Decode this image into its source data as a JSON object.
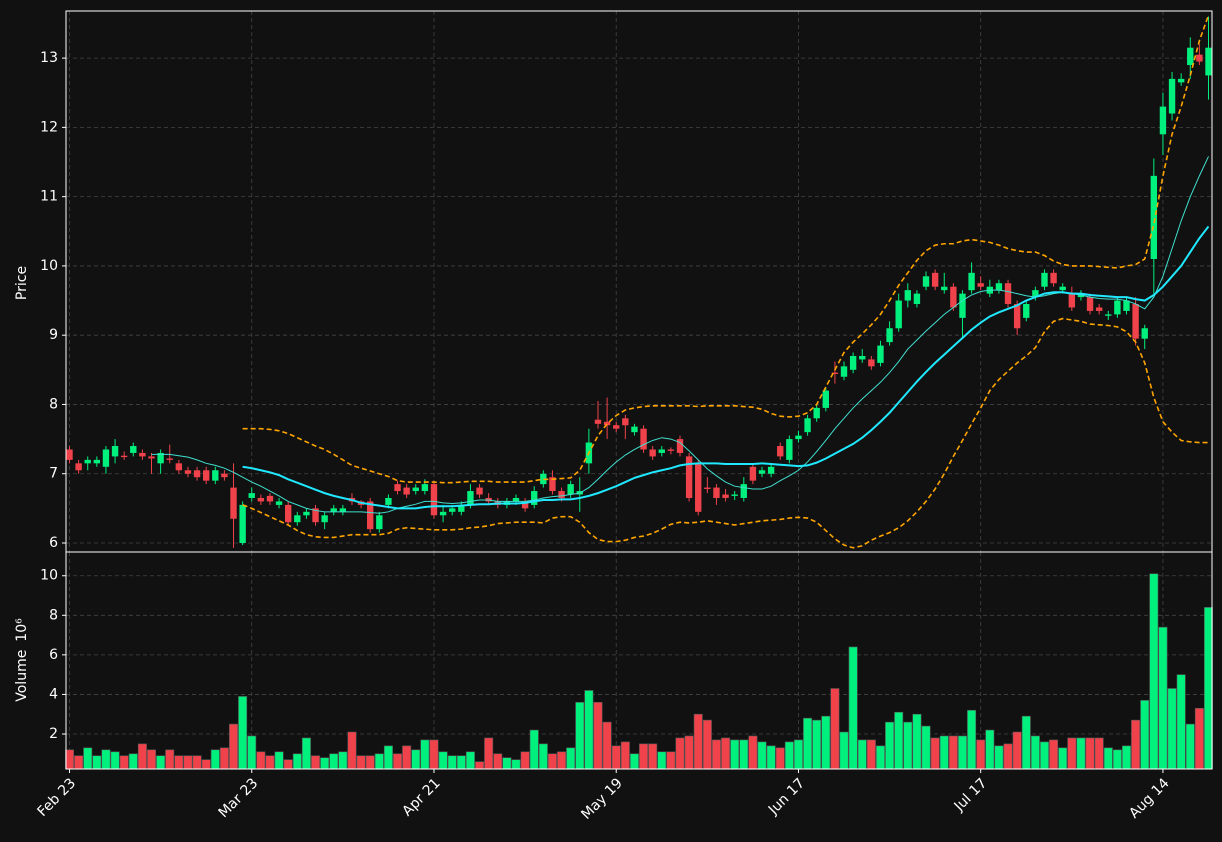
{
  "chart_data": {
    "type": "candlestick",
    "categories": [
      "Feb 23",
      null,
      null,
      null,
      null,
      null,
      null,
      null,
      null,
      null,
      null,
      null,
      null,
      null,
      null,
      null,
      null,
      null,
      null,
      null,
      "Mar 23",
      null,
      null,
      null,
      null,
      null,
      null,
      null,
      null,
      null,
      null,
      null,
      null,
      null,
      null,
      null,
      null,
      null,
      null,
      null,
      "Apr 21",
      null,
      null,
      null,
      null,
      null,
      null,
      null,
      null,
      null,
      null,
      null,
      null,
      null,
      null,
      null,
      null,
      null,
      null,
      null,
      "May 19",
      null,
      null,
      null,
      null,
      null,
      null,
      null,
      null,
      null,
      null,
      null,
      null,
      null,
      null,
      null,
      null,
      null,
      null,
      null,
      "Jun 17",
      null,
      null,
      null,
      null,
      null,
      null,
      null,
      null,
      null,
      null,
      null,
      null,
      null,
      null,
      null,
      null,
      null,
      null,
      null,
      "Jul 17",
      null,
      null,
      null,
      null,
      null,
      null,
      null,
      null,
      null,
      null,
      null,
      null,
      null,
      null,
      null,
      null,
      null,
      null,
      null,
      "Aug 14",
      null,
      null,
      null,
      null,
      null
    ],
    "open": [
      7.35,
      7.15,
      7.15,
      7.15,
      7.1,
      7.25,
      7.26,
      7.3,
      7.3,
      7.25,
      7.15,
      7.22,
      7.15,
      7.05,
      7.05,
      7.05,
      6.9,
      7.0,
      6.8,
      6.0,
      6.65,
      6.65,
      6.68,
      6.55,
      6.55,
      6.3,
      6.4,
      6.5,
      6.3,
      6.45,
      6.45,
      6.65,
      6.6,
      6.6,
      6.2,
      6.55,
      6.85,
      6.8,
      6.75,
      6.75,
      6.85,
      6.4,
      6.45,
      6.45,
      6.55,
      6.8,
      6.65,
      6.6,
      6.55,
      6.6,
      6.6,
      6.55,
      6.85,
      6.95,
      6.75,
      6.7,
      6.7,
      7.15,
      7.78,
      7.75,
      7.7,
      7.8,
      7.6,
      7.65,
      7.35,
      7.3,
      7.35,
      7.5,
      7.25,
      7.15,
      6.8,
      6.8,
      6.7,
      6.68,
      6.65,
      7.1,
      7.0,
      7.0,
      7.4,
      7.2,
      7.5,
      7.6,
      7.8,
      7.95,
      8.46,
      8.4,
      8.5,
      8.65,
      8.65,
      8.6,
      8.9,
      9.1,
      9.5,
      9.45,
      9.7,
      9.9,
      9.65,
      9.7,
      9.25,
      9.65,
      9.75,
      9.6,
      9.65,
      9.75,
      9.45,
      9.25,
      9.55,
      9.7,
      9.9,
      9.65,
      9.6,
      9.55,
      9.55,
      9.4,
      9.28,
      9.3,
      9.35,
      9.45,
      8.95,
      10.1,
      11.9,
      12.2,
      12.65,
      12.9,
      13.05,
      12.75
    ],
    "high": [
      7.4,
      7.2,
      7.25,
      7.25,
      7.4,
      7.5,
      7.32,
      7.45,
      7.35,
      7.3,
      7.35,
      7.42,
      7.2,
      7.1,
      7.1,
      7.1,
      7.1,
      7.05,
      7.15,
      6.6,
      6.8,
      6.7,
      6.72,
      6.65,
      6.6,
      6.45,
      6.5,
      6.55,
      6.45,
      6.55,
      6.55,
      6.72,
      6.62,
      6.65,
      6.45,
      6.7,
      6.9,
      6.85,
      6.85,
      6.92,
      6.9,
      6.55,
      6.55,
      6.6,
      6.85,
      6.85,
      6.72,
      6.65,
      6.65,
      6.7,
      6.65,
      6.82,
      7.05,
      7.05,
      6.8,
      6.9,
      6.95,
      7.65,
      8.05,
      8.1,
      7.75,
      7.85,
      7.72,
      7.7,
      7.4,
      7.4,
      7.38,
      7.55,
      7.3,
      7.2,
      6.95,
      6.85,
      6.78,
      6.75,
      6.95,
      7.15,
      7.1,
      7.15,
      7.45,
      7.55,
      7.62,
      7.85,
      8.0,
      8.25,
      8.62,
      8.62,
      8.75,
      8.8,
      8.7,
      8.92,
      9.2,
      9.6,
      9.75,
      9.65,
      9.92,
      9.95,
      9.9,
      9.75,
      9.65,
      10.05,
      9.85,
      9.8,
      9.8,
      9.8,
      9.5,
      9.5,
      9.7,
      9.95,
      9.95,
      9.75,
      9.7,
      9.65,
      9.6,
      9.45,
      9.35,
      9.55,
      9.55,
      9.55,
      9.15,
      11.55,
      12.5,
      12.8,
      12.78,
      13.3,
      13.2,
      13.6
    ],
    "low": [
      7.15,
      7.0,
      7.05,
      7.1,
      7.0,
      7.15,
      7.2,
      7.25,
      7.2,
      7.0,
      7.0,
      7.15,
      7.0,
      6.95,
      6.9,
      6.85,
      6.85,
      6.9,
      5.93,
      5.97,
      6.6,
      6.55,
      6.55,
      6.5,
      6.25,
      6.25,
      6.35,
      6.25,
      6.2,
      6.4,
      6.4,
      6.55,
      6.5,
      6.15,
      6.15,
      6.5,
      6.7,
      6.65,
      6.7,
      6.7,
      6.35,
      6.3,
      6.4,
      6.4,
      6.5,
      6.65,
      6.55,
      6.5,
      6.5,
      6.55,
      6.45,
      6.5,
      6.8,
      6.7,
      6.6,
      6.65,
      6.45,
      7.0,
      7.65,
      7.5,
      7.6,
      7.5,
      7.55,
      7.3,
      7.2,
      7.25,
      7.28,
      7.25,
      6.6,
      6.4,
      6.72,
      6.55,
      6.6,
      6.62,
      6.6,
      6.85,
      6.95,
      6.95,
      7.2,
      7.15,
      7.45,
      7.55,
      7.75,
      7.9,
      8.3,
      8.35,
      8.45,
      8.6,
      8.5,
      8.55,
      8.85,
      9.05,
      9.4,
      9.4,
      9.65,
      9.65,
      9.6,
      9.35,
      8.95,
      9.6,
      9.65,
      9.55,
      9.6,
      9.4,
      9.0,
      9.2,
      9.5,
      9.65,
      9.7,
      9.6,
      9.35,
      9.5,
      9.3,
      9.3,
      9.22,
      9.25,
      9.3,
      8.85,
      8.8,
      9.6,
      11.6,
      12.1,
      12.6,
      12.7,
      12.9,
      12.4
    ],
    "close": [
      7.2,
      7.05,
      7.2,
      7.2,
      7.35,
      7.4,
      7.24,
      7.4,
      7.25,
      7.22,
      7.3,
      7.2,
      7.05,
      7.0,
      6.95,
      6.9,
      7.05,
      6.95,
      6.35,
      6.55,
      6.72,
      6.6,
      6.6,
      6.6,
      6.3,
      6.4,
      6.45,
      6.3,
      6.4,
      6.5,
      6.5,
      6.6,
      6.55,
      6.2,
      6.4,
      6.65,
      6.75,
      6.7,
      6.8,
      6.85,
      6.4,
      6.45,
      6.5,
      6.55,
      6.75,
      6.7,
      6.6,
      6.55,
      6.6,
      6.65,
      6.5,
      6.75,
      7.0,
      6.75,
      6.65,
      6.85,
      6.75,
      7.45,
      7.72,
      7.7,
      7.65,
      7.7,
      7.68,
      7.35,
      7.25,
      7.35,
      7.33,
      7.3,
      6.65,
      6.45,
      6.78,
      6.65,
      6.65,
      6.7,
      6.85,
      6.9,
      7.05,
      7.1,
      7.25,
      7.5,
      7.55,
      7.8,
      7.95,
      8.2,
      8.44,
      8.55,
      8.7,
      8.7,
      8.55,
      8.85,
      9.1,
      9.5,
      9.65,
      9.6,
      9.85,
      9.7,
      9.7,
      9.4,
      9.6,
      9.9,
      9.7,
      9.7,
      9.75,
      9.45,
      9.1,
      9.45,
      9.65,
      9.9,
      9.75,
      9.7,
      9.4,
      9.6,
      9.35,
      9.35,
      9.3,
      9.5,
      9.5,
      8.95,
      9.1,
      11.3,
      12.3,
      12.7,
      12.7,
      13.15,
      12.95,
      13.15
    ],
    "volume": [
      1.2,
      0.9,
      1.3,
      0.9,
      1.2,
      1.1,
      0.9,
      1.0,
      1.5,
      1.2,
      0.9,
      1.2,
      0.9,
      0.9,
      0.9,
      0.7,
      1.2,
      1.3,
      2.5,
      3.9,
      1.9,
      1.1,
      0.9,
      1.1,
      0.7,
      1.0,
      1.8,
      0.9,
      0.8,
      1.0,
      1.1,
      2.1,
      0.9,
      0.9,
      1.0,
      1.4,
      1.0,
      1.4,
      1.2,
      1.7,
      1.7,
      1.1,
      0.9,
      0.9,
      1.1,
      0.6,
      1.8,
      1.0,
      0.8,
      0.7,
      1.1,
      2.2,
      1.5,
      1.0,
      1.1,
      1.3,
      3.6,
      4.2,
      3.6,
      2.6,
      1.4,
      1.6,
      1.0,
      1.5,
      1.5,
      1.1,
      1.1,
      1.8,
      1.9,
      3.0,
      2.7,
      1.7,
      1.8,
      1.7,
      1.7,
      1.9,
      1.6,
      1.4,
      1.3,
      1.6,
      1.7,
      2.8,
      2.7,
      2.9,
      4.3,
      2.1,
      6.4,
      1.7,
      1.7,
      1.4,
      2.6,
      3.1,
      2.6,
      3.0,
      2.4,
      1.8,
      1.9,
      1.9,
      1.9,
      3.2,
      1.7,
      2.2,
      1.4,
      1.5,
      2.1,
      2.9,
      1.9,
      1.6,
      1.7,
      1.3,
      1.8,
      1.8,
      1.8,
      1.8,
      1.3,
      1.2,
      1.4,
      2.7,
      3.7,
      10.1,
      7.4,
      4.3,
      5.0,
      2.5,
      3.3,
      8.4
    ],
    "up_color": "#00f07e",
    "down_color": "#f0424b",
    "grid": true,
    "price_axis": {
      "label": "Price",
      "ylim": [
        5.87,
        13.68
      ],
      "yticks": [
        6,
        7,
        8,
        9,
        10,
        11,
        12,
        13
      ]
    },
    "volume_axis": {
      "label": "Volume",
      "offset_label": "10⁶",
      "ylim": [
        0.23,
        11.2
      ],
      "yticks": [
        2,
        4,
        6,
        8,
        10
      ]
    },
    "overlays": [
      {
        "style": "thin",
        "color": "#40e0d0",
        "values": [
          null,
          null,
          null,
          null,
          null,
          null,
          null,
          null,
          null,
          7.28,
          7.28,
          7.28,
          7.26,
          7.24,
          7.2,
          7.15,
          7.12,
          7.08,
          7.02,
          6.95,
          6.88,
          6.82,
          6.75,
          6.68,
          6.6,
          6.55,
          6.5,
          6.47,
          6.45,
          6.45,
          6.45,
          6.45,
          6.45,
          6.44,
          6.43,
          6.45,
          6.5,
          6.53,
          6.56,
          6.6,
          6.6,
          6.58,
          6.57,
          6.58,
          6.6,
          6.62,
          6.62,
          6.6,
          6.6,
          6.6,
          6.6,
          6.62,
          6.65,
          6.67,
          6.68,
          6.7,
          6.72,
          6.8,
          6.92,
          7.05,
          7.17,
          7.27,
          7.35,
          7.42,
          7.48,
          7.52,
          7.5,
          7.45,
          7.33,
          7.2,
          7.07,
          6.97,
          6.88,
          6.82,
          6.8,
          6.78,
          6.78,
          6.82,
          6.9,
          6.97,
          7.05,
          7.17,
          7.32,
          7.48,
          7.65,
          7.8,
          7.95,
          8.08,
          8.2,
          8.32,
          8.46,
          8.62,
          8.8,
          8.93,
          9.06,
          9.18,
          9.3,
          9.4,
          9.5,
          9.58,
          9.63,
          9.65,
          9.65,
          9.63,
          9.6,
          9.57,
          9.55,
          9.57,
          9.6,
          9.62,
          9.6,
          9.58,
          9.55,
          9.53,
          9.52,
          9.52,
          9.5,
          9.45,
          9.38,
          9.55,
          9.85,
          10.25,
          10.65,
          11.0,
          11.3,
          11.58
        ]
      },
      {
        "style": "thick",
        "color": "#20e8ff",
        "values": [
          null,
          null,
          null,
          null,
          null,
          null,
          null,
          null,
          null,
          null,
          null,
          null,
          null,
          null,
          null,
          null,
          null,
          null,
          null,
          7.1,
          7.08,
          7.05,
          7.02,
          6.98,
          6.92,
          6.87,
          6.82,
          6.77,
          6.72,
          6.68,
          6.65,
          6.62,
          6.58,
          6.56,
          6.54,
          6.52,
          6.5,
          6.5,
          6.5,
          6.52,
          6.53,
          6.53,
          6.53,
          6.54,
          6.55,
          6.56,
          6.56,
          6.57,
          6.57,
          6.57,
          6.58,
          6.6,
          6.62,
          6.62,
          6.63,
          6.63,
          6.65,
          6.68,
          6.72,
          6.77,
          6.82,
          6.88,
          6.94,
          6.98,
          7.02,
          7.05,
          7.08,
          7.12,
          7.14,
          7.15,
          7.15,
          7.15,
          7.14,
          7.14,
          7.14,
          7.14,
          7.15,
          7.14,
          7.13,
          7.12,
          7.11,
          7.12,
          7.16,
          7.22,
          7.29,
          7.36,
          7.43,
          7.52,
          7.63,
          7.75,
          7.88,
          8.03,
          8.18,
          8.33,
          8.47,
          8.6,
          8.72,
          8.84,
          8.96,
          9.08,
          9.18,
          9.27,
          9.33,
          9.38,
          9.43,
          9.5,
          9.55,
          9.6,
          9.62,
          9.62,
          9.6,
          9.6,
          9.58,
          9.57,
          9.56,
          9.55,
          9.55,
          9.52,
          9.5,
          9.58,
          9.7,
          9.85,
          10.0,
          10.2,
          10.4,
          10.57
        ]
      },
      {
        "style": "dashed",
        "color": "#ffa500",
        "values": [
          null,
          null,
          null,
          null,
          null,
          null,
          null,
          null,
          null,
          null,
          null,
          null,
          null,
          null,
          null,
          null,
          null,
          null,
          null,
          7.65,
          7.65,
          7.65,
          7.64,
          7.62,
          7.58,
          7.52,
          7.46,
          7.4,
          7.35,
          7.28,
          7.2,
          7.12,
          7.08,
          7.04,
          7.0,
          6.96,
          6.9,
          6.88,
          6.88,
          6.88,
          6.88,
          6.87,
          6.87,
          6.88,
          6.89,
          6.89,
          6.89,
          6.88,
          6.88,
          6.88,
          6.88,
          6.9,
          6.92,
          6.92,
          6.93,
          6.94,
          7.05,
          7.3,
          7.55,
          7.72,
          7.84,
          7.92,
          7.95,
          7.97,
          7.98,
          7.98,
          7.98,
          7.98,
          7.98,
          7.97,
          7.98,
          7.98,
          7.98,
          7.98,
          7.97,
          7.96,
          7.93,
          7.87,
          7.83,
          7.82,
          7.83,
          7.88,
          8.0,
          8.25,
          8.5,
          8.75,
          8.9,
          9.02,
          9.15,
          9.3,
          9.5,
          9.72,
          9.9,
          10.08,
          10.22,
          10.3,
          10.32,
          10.32,
          10.36,
          10.38,
          10.36,
          10.34,
          10.3,
          10.25,
          10.22,
          10.2,
          10.2,
          10.15,
          10.07,
          10.02,
          10.0,
          10.0,
          10.0,
          9.99,
          9.98,
          9.97,
          10.0,
          10.02,
          10.1,
          10.6,
          11.3,
          11.9,
          12.3,
          12.75,
          13.25,
          13.62
        ]
      },
      {
        "style": "dashed",
        "color": "#ffa500",
        "values": [
          null,
          null,
          null,
          null,
          null,
          null,
          null,
          null,
          null,
          null,
          null,
          null,
          null,
          null,
          null,
          null,
          null,
          null,
          null,
          6.55,
          6.5,
          6.44,
          6.38,
          6.32,
          6.26,
          6.18,
          6.12,
          6.09,
          6.08,
          6.08,
          6.1,
          6.12,
          6.12,
          6.12,
          6.12,
          6.14,
          6.2,
          6.22,
          6.21,
          6.2,
          6.19,
          6.19,
          6.19,
          6.2,
          6.22,
          6.23,
          6.25,
          6.28,
          6.29,
          6.3,
          6.3,
          6.3,
          6.29,
          6.36,
          6.38,
          6.38,
          6.3,
          6.15,
          6.05,
          6.02,
          6.02,
          6.04,
          6.08,
          6.1,
          6.14,
          6.2,
          6.27,
          6.3,
          6.29,
          6.3,
          6.32,
          6.3,
          6.28,
          6.26,
          6.28,
          6.3,
          6.32,
          6.33,
          6.34,
          6.36,
          6.37,
          6.36,
          6.3,
          6.18,
          6.06,
          5.97,
          5.93,
          5.96,
          6.04,
          6.1,
          6.15,
          6.22,
          6.32,
          6.45,
          6.6,
          6.78,
          7.0,
          7.25,
          7.48,
          7.72,
          7.95,
          8.2,
          8.36,
          8.48,
          8.6,
          8.7,
          8.82,
          9.05,
          9.2,
          9.24,
          9.22,
          9.2,
          9.16,
          9.15,
          9.14,
          9.12,
          9.05,
          8.9,
          8.6,
          8.1,
          7.75,
          7.6,
          7.48,
          7.46,
          7.45,
          7.45
        ]
      }
    ]
  }
}
